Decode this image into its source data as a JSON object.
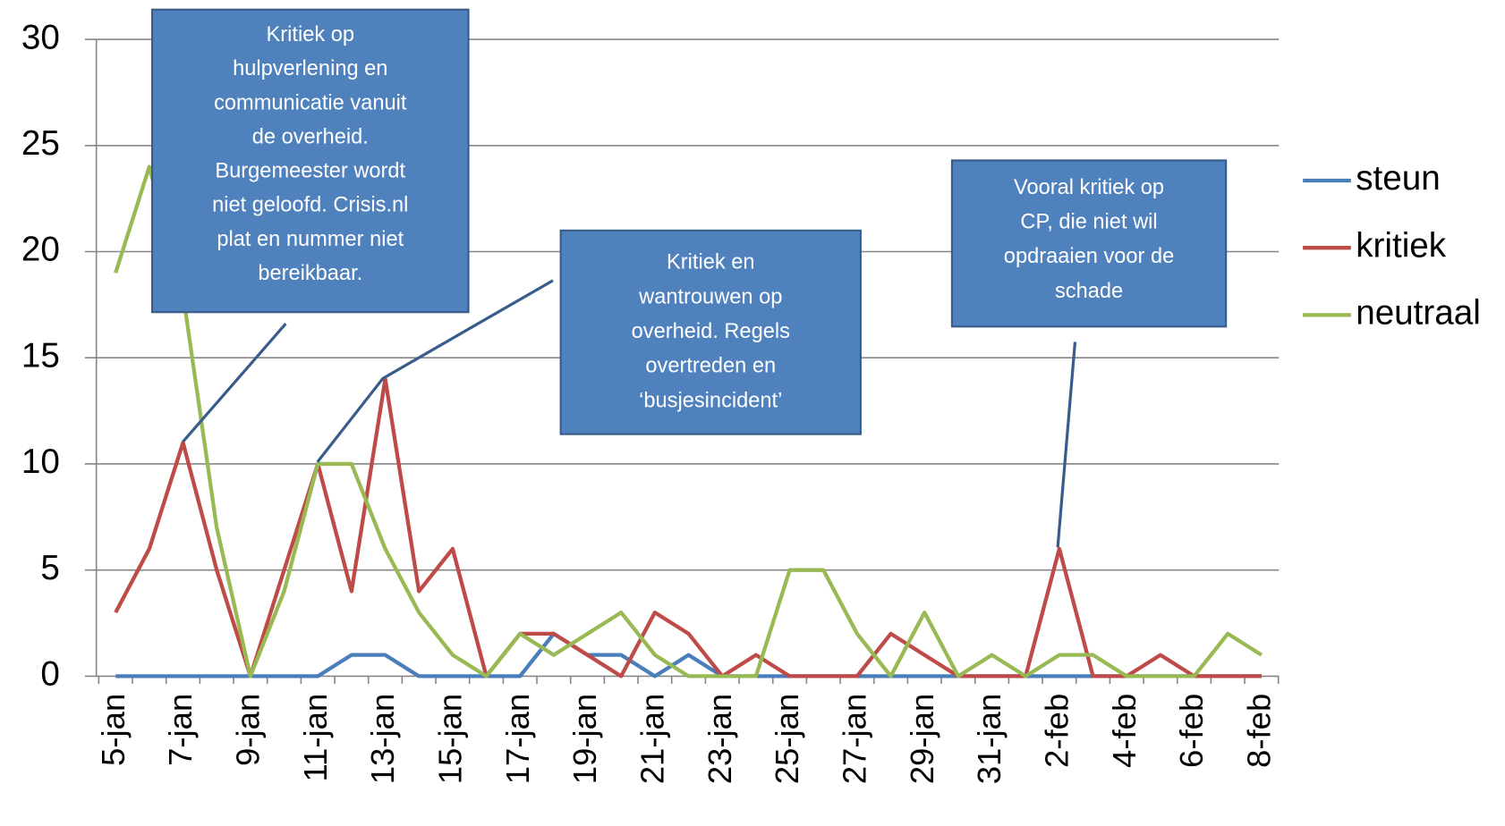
{
  "chart_data": {
    "type": "line",
    "categories": [
      "5-jan",
      null,
      "7-jan",
      null,
      "9-jan",
      null,
      "11-jan",
      null,
      "13-jan",
      null,
      "15-jan",
      null,
      "17-jan",
      null,
      "19-jan",
      null,
      "21-jan",
      null,
      "23-jan",
      null,
      "25-jan",
      null,
      "27-jan",
      null,
      "29-jan",
      null,
      "31-jan",
      null,
      "2-feb",
      null,
      "4-feb",
      null,
      "6-feb",
      null,
      "8-feb"
    ],
    "series": [
      {
        "name": "steun",
        "color": "#4a7ebb",
        "values": [
          0,
          0,
          0,
          0,
          0,
          0,
          0,
          1,
          1,
          0,
          0,
          0,
          0,
          2,
          1,
          1,
          0,
          1,
          0,
          0,
          0,
          0,
          0,
          0,
          0,
          0,
          0,
          0,
          0,
          0,
          0,
          0,
          0,
          0,
          0
        ]
      },
      {
        "name": "kritiek",
        "color": "#be4b48",
        "values": [
          3,
          6,
          11,
          5,
          0,
          5,
          10,
          4,
          14,
          4,
          6,
          0,
          2,
          2,
          1,
          0,
          3,
          2,
          0,
          1,
          0,
          0,
          0,
          2,
          1,
          0,
          0,
          0,
          6,
          0,
          0,
          1,
          0,
          0,
          0
        ]
      },
      {
        "name": "neutraal",
        "color": "#98b954",
        "values": [
          19,
          24,
          18,
          7,
          0,
          4,
          10,
          10,
          6,
          3,
          1,
          0,
          2,
          1,
          2,
          3,
          1,
          0,
          0,
          0,
          5,
          5,
          2,
          0,
          3,
          0,
          1,
          0,
          1,
          1,
          0,
          0,
          0,
          2,
          1
        ]
      }
    ],
    "ylim": [
      0,
      30
    ],
    "yticks": [
      0,
      5,
      10,
      15,
      20,
      25,
      30
    ],
    "grid": true,
    "legend": "right",
    "annotations": [
      {
        "lines": [
          "Kritiek op",
          "hulpverlening en",
          "communicatie vanuit",
          "de overheid.",
          "Burgemeester wordt",
          "niet geloofd. Crisis.nl",
          "plat en nummer niet",
          "bereikbaar."
        ]
      },
      {
        "lines": [
          "Kritiek en",
          "wantrouwen op",
          "overheid. Regels",
          "overtreden en",
          "‘busjesincident’"
        ]
      },
      {
        "lines": [
          "Vooral kritiek op",
          "CP, die niet wil",
          "opdraaien voor de",
          "schade"
        ]
      }
    ]
  }
}
